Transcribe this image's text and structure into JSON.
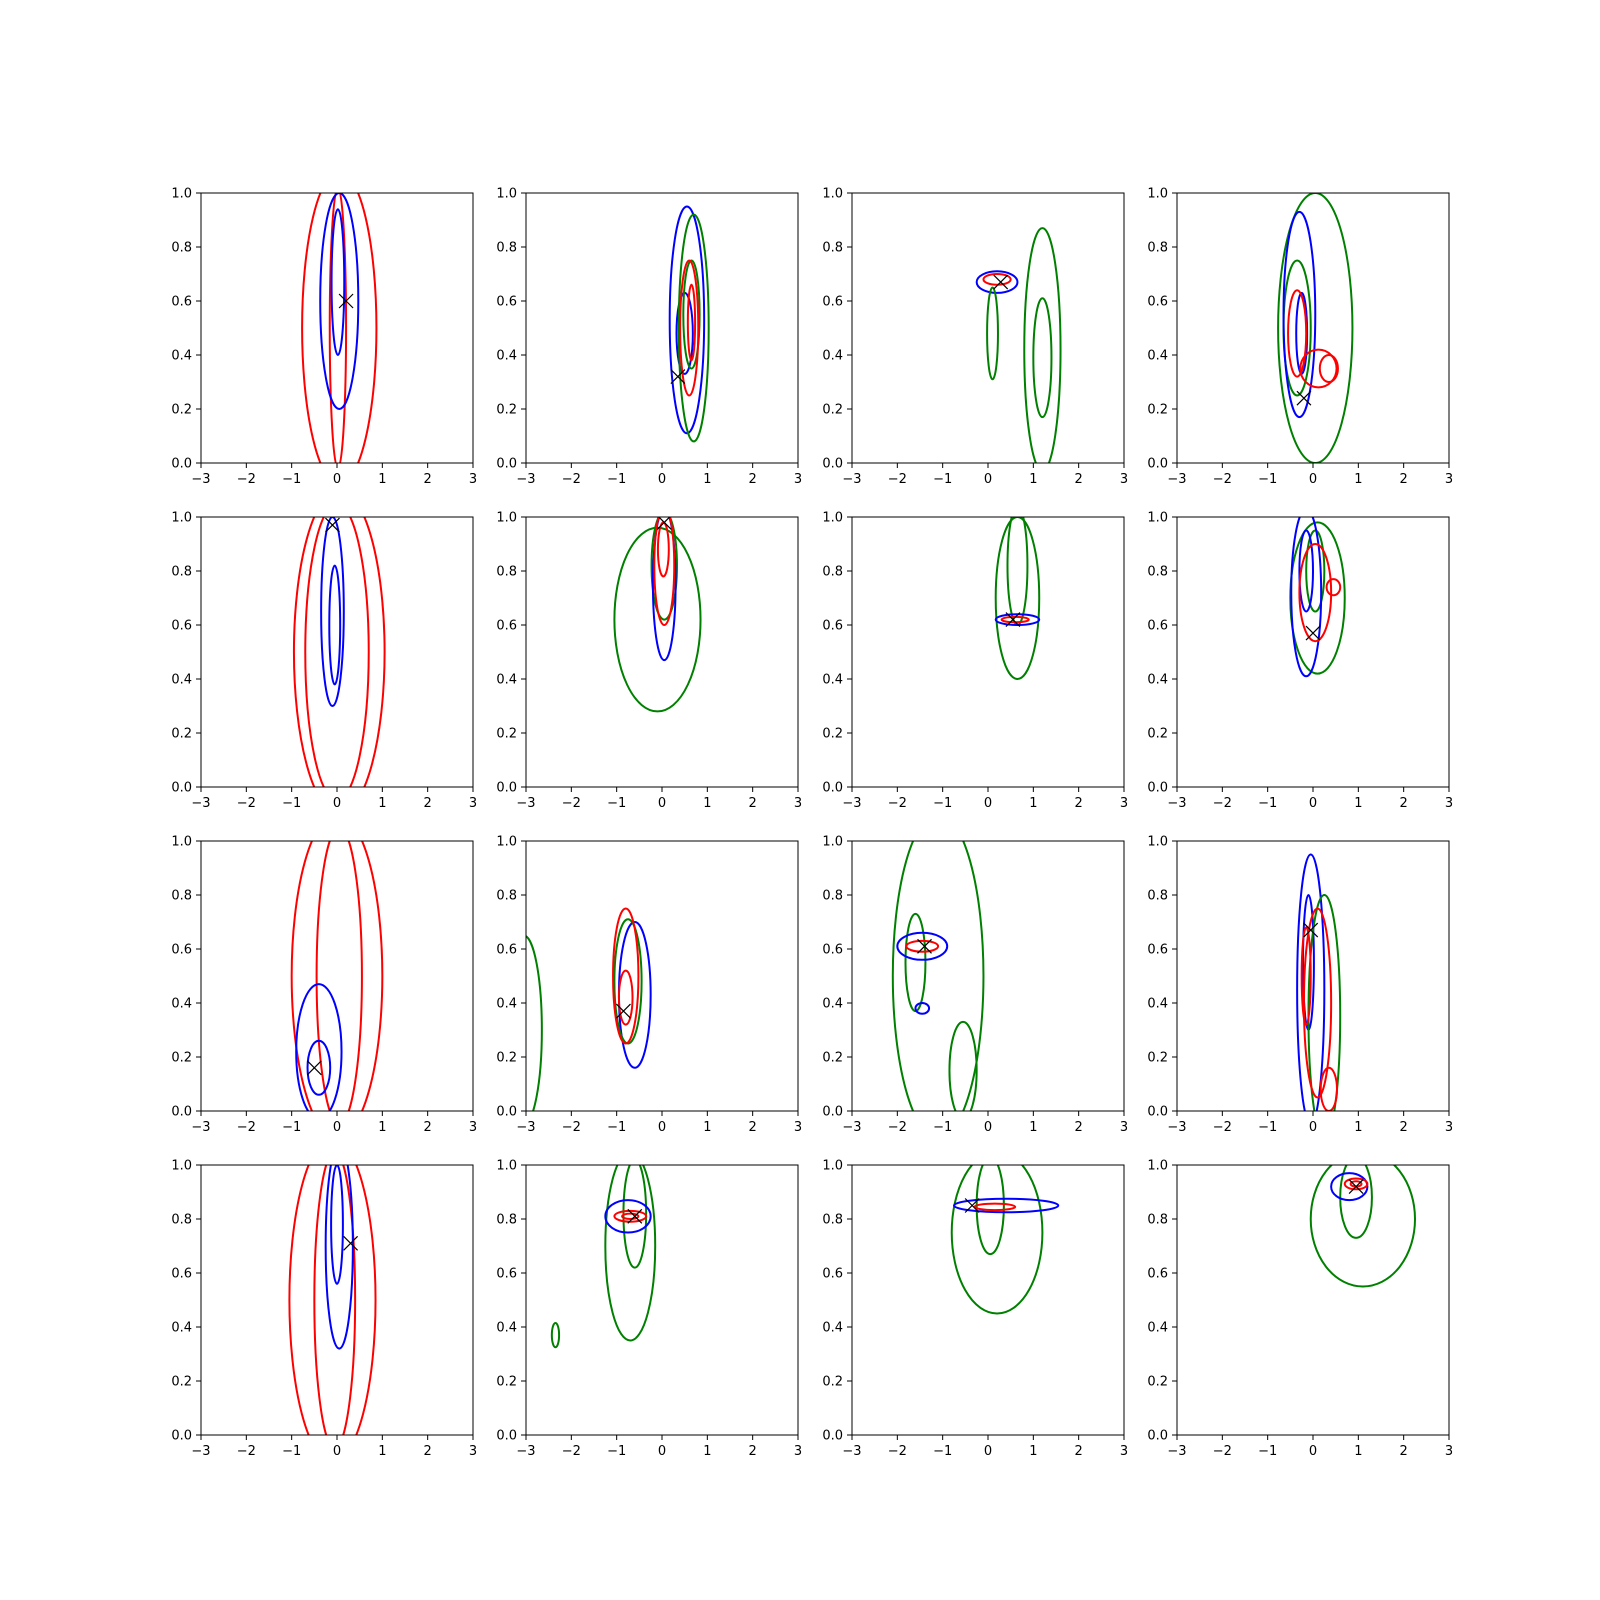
{
  "chart_data": {
    "type": "contour",
    "layout": {
      "rows": 4,
      "cols": 4
    },
    "xlim": [
      -3,
      3
    ],
    "ylim": [
      0,
      1
    ],
    "xticks": [
      -3,
      -2,
      -1,
      0,
      1,
      2,
      3
    ],
    "yticks": [
      "0.0",
      "0.2",
      "0.4",
      "0.6",
      "0.8",
      "1.0"
    ],
    "xtick_labels": [
      "−3",
      "−2",
      "−1",
      "0",
      "1",
      "2",
      "3"
    ],
    "series_colors": {
      "blue": "#0000ff",
      "red": "#ff0000",
      "green": "#008000",
      "marker": "#000000"
    },
    "panels": [
      {
        "marker": [
          0.2,
          0.6
        ],
        "contours": [
          {
            "color": "red",
            "cx": 0.05,
            "cy": 0.5,
            "rx": 0.82,
            "ry": 0.58
          },
          {
            "color": "red",
            "cx": 0.02,
            "cy": 0.5,
            "rx": 0.18,
            "ry": 0.52
          },
          {
            "color": "blue",
            "cx": 0.05,
            "cy": 0.6,
            "rx": 0.42,
            "ry": 0.4
          },
          {
            "color": "blue",
            "cx": 0.02,
            "cy": 0.67,
            "rx": 0.14,
            "ry": 0.27
          }
        ]
      },
      {
        "marker": [
          0.35,
          0.32
        ],
        "contours": [
          {
            "color": "blue",
            "cx": 0.55,
            "cy": 0.53,
            "rx": 0.38,
            "ry": 0.42
          },
          {
            "color": "blue",
            "cx": 0.5,
            "cy": 0.48,
            "rx": 0.18,
            "ry": 0.15
          },
          {
            "color": "green",
            "cx": 0.7,
            "cy": 0.5,
            "rx": 0.33,
            "ry": 0.42
          },
          {
            "color": "green",
            "cx": 0.65,
            "cy": 0.55,
            "rx": 0.18,
            "ry": 0.2
          },
          {
            "color": "red",
            "cx": 0.6,
            "cy": 0.5,
            "rx": 0.2,
            "ry": 0.25
          },
          {
            "color": "red",
            "cx": 0.65,
            "cy": 0.52,
            "rx": 0.08,
            "ry": 0.14
          }
        ]
      },
      {
        "marker": [
          0.28,
          0.67
        ],
        "contours": [
          {
            "color": "blue",
            "cx": 0.2,
            "cy": 0.67,
            "rx": 0.45,
            "ry": 0.04
          },
          {
            "color": "red",
            "cx": 0.2,
            "cy": 0.68,
            "rx": 0.3,
            "ry": 0.02
          },
          {
            "color": "green",
            "cx": 0.1,
            "cy": 0.48,
            "rx": 0.12,
            "ry": 0.17
          },
          {
            "color": "green",
            "cx": 1.2,
            "cy": 0.42,
            "rx": 0.4,
            "ry": 0.45
          },
          {
            "color": "green",
            "cx": 1.2,
            "cy": 0.39,
            "rx": 0.2,
            "ry": 0.22
          }
        ]
      },
      {
        "marker": [
          -0.2,
          0.24
        ],
        "contours": [
          {
            "color": "green",
            "cx": 0.05,
            "cy": 0.5,
            "rx": 0.82,
            "ry": 0.5
          },
          {
            "color": "green",
            "cx": -0.35,
            "cy": 0.5,
            "rx": 0.3,
            "ry": 0.25
          },
          {
            "color": "blue",
            "cx": -0.3,
            "cy": 0.55,
            "rx": 0.35,
            "ry": 0.38
          },
          {
            "color": "blue",
            "cx": -0.25,
            "cy": 0.48,
            "rx": 0.12,
            "ry": 0.15
          },
          {
            "color": "red",
            "cx": -0.35,
            "cy": 0.48,
            "rx": 0.2,
            "ry": 0.16
          },
          {
            "color": "red",
            "cx": 0.12,
            "cy": 0.35,
            "rx": 0.4,
            "ry": 0.07
          },
          {
            "color": "red",
            "cx": 0.35,
            "cy": 0.35,
            "rx": 0.2,
            "ry": 0.05
          }
        ]
      },
      {
        "marker": [
          -0.1,
          0.97
        ],
        "contours": [
          {
            "color": "red",
            "cx": 0.05,
            "cy": 0.5,
            "rx": 1.0,
            "ry": 0.6
          },
          {
            "color": "red",
            "cx": 0.0,
            "cy": 0.5,
            "rx": 0.7,
            "ry": 0.55
          },
          {
            "color": "blue",
            "cx": -0.1,
            "cy": 0.65,
            "rx": 0.25,
            "ry": 0.35
          },
          {
            "color": "blue",
            "cx": -0.05,
            "cy": 0.6,
            "rx": 0.12,
            "ry": 0.22
          }
        ]
      },
      {
        "marker": [
          0.05,
          0.98
        ],
        "contours": [
          {
            "color": "green",
            "cx": -0.1,
            "cy": 0.62,
            "rx": 0.95,
            "ry": 0.34
          },
          {
            "color": "green",
            "cx": 0.05,
            "cy": 0.82,
            "rx": 0.28,
            "ry": 0.2
          },
          {
            "color": "blue",
            "cx": 0.05,
            "cy": 0.75,
            "rx": 0.25,
            "ry": 0.28
          },
          {
            "color": "red",
            "cx": 0.05,
            "cy": 0.82,
            "rx": 0.22,
            "ry": 0.22
          },
          {
            "color": "red",
            "cx": 0.03,
            "cy": 0.88,
            "rx": 0.12,
            "ry": 0.1
          }
        ]
      },
      {
        "marker": [
          0.55,
          0.62
        ],
        "contours": [
          {
            "color": "green",
            "cx": 0.65,
            "cy": 0.7,
            "rx": 0.48,
            "ry": 0.3
          },
          {
            "color": "green",
            "cx": 0.65,
            "cy": 0.82,
            "rx": 0.22,
            "ry": 0.22
          },
          {
            "color": "blue",
            "cx": 0.65,
            "cy": 0.62,
            "rx": 0.48,
            "ry": 0.02
          },
          {
            "color": "red",
            "cx": 0.6,
            "cy": 0.62,
            "rx": 0.3,
            "ry": 0.01
          }
        ]
      },
      {
        "marker": [
          0.0,
          0.57
        ],
        "contours": [
          {
            "color": "green",
            "cx": 0.1,
            "cy": 0.7,
            "rx": 0.6,
            "ry": 0.28
          },
          {
            "color": "green",
            "cx": 0.05,
            "cy": 0.8,
            "rx": 0.2,
            "ry": 0.15
          },
          {
            "color": "blue",
            "cx": -0.15,
            "cy": 0.72,
            "rx": 0.33,
            "ry": 0.31
          },
          {
            "color": "blue",
            "cx": -0.15,
            "cy": 0.8,
            "rx": 0.15,
            "ry": 0.15
          },
          {
            "color": "red",
            "cx": 0.05,
            "cy": 0.72,
            "rx": 0.35,
            "ry": 0.18
          },
          {
            "color": "red",
            "cx": 0.45,
            "cy": 0.74,
            "rx": 0.15,
            "ry": 0.03
          }
        ]
      },
      {
        "marker": [
          -0.5,
          0.16
        ],
        "contours": [
          {
            "color": "red",
            "cx": 0.0,
            "cy": 0.5,
            "rx": 1.0,
            "ry": 0.6
          },
          {
            "color": "red",
            "cx": 0.05,
            "cy": 0.5,
            "rx": 0.5,
            "ry": 0.55
          },
          {
            "color": "blue",
            "cx": -0.4,
            "cy": 0.22,
            "rx": 0.5,
            "ry": 0.25
          },
          {
            "color": "blue",
            "cx": -0.4,
            "cy": 0.16,
            "rx": 0.25,
            "ry": 0.1
          }
        ]
      },
      {
        "marker": [
          -0.85,
          0.37
        ],
        "contours": [
          {
            "color": "green",
            "cx": -3.05,
            "cy": 0.3,
            "rx": 0.4,
            "ry": 0.35
          },
          {
            "color": "blue",
            "cx": -0.6,
            "cy": 0.43,
            "rx": 0.35,
            "ry": 0.27
          },
          {
            "color": "green",
            "cx": -0.75,
            "cy": 0.48,
            "rx": 0.3,
            "ry": 0.23
          },
          {
            "color": "red",
            "cx": -0.8,
            "cy": 0.5,
            "rx": 0.28,
            "ry": 0.25
          },
          {
            "color": "red",
            "cx": -0.8,
            "cy": 0.42,
            "rx": 0.15,
            "ry": 0.1
          }
        ]
      },
      {
        "marker": [
          -1.4,
          0.61
        ],
        "contours": [
          {
            "color": "green",
            "cx": -1.1,
            "cy": 0.5,
            "rx": 1.0,
            "ry": 0.6
          },
          {
            "color": "green",
            "cx": -1.6,
            "cy": 0.55,
            "rx": 0.22,
            "ry": 0.18
          },
          {
            "color": "green",
            "cx": -0.55,
            "cy": 0.15,
            "rx": 0.3,
            "ry": 0.18
          },
          {
            "color": "blue",
            "cx": -1.45,
            "cy": 0.61,
            "rx": 0.55,
            "ry": 0.05
          },
          {
            "color": "blue",
            "cx": -1.45,
            "cy": 0.38,
            "rx": 0.15,
            "ry": 0.02
          },
          {
            "color": "red",
            "cx": -1.45,
            "cy": 0.61,
            "rx": 0.35,
            "ry": 0.02
          }
        ]
      },
      {
        "marker": [
          -0.05,
          0.67
        ],
        "contours": [
          {
            "color": "blue",
            "cx": -0.05,
            "cy": 0.45,
            "rx": 0.3,
            "ry": 0.5
          },
          {
            "color": "blue",
            "cx": -0.1,
            "cy": 0.55,
            "rx": 0.12,
            "ry": 0.25
          },
          {
            "color": "green",
            "cx": 0.25,
            "cy": 0.35,
            "rx": 0.35,
            "ry": 0.45
          },
          {
            "color": "red",
            "cx": 0.1,
            "cy": 0.4,
            "rx": 0.3,
            "ry": 0.35
          },
          {
            "color": "red",
            "cx": -0.15,
            "cy": 0.5,
            "rx": 0.1,
            "ry": 0.18
          },
          {
            "color": "red",
            "cx": 0.35,
            "cy": 0.08,
            "rx": 0.18,
            "ry": 0.08
          }
        ]
      },
      {
        "marker": [
          0.3,
          0.71
        ],
        "contours": [
          {
            "color": "red",
            "cx": -0.1,
            "cy": 0.5,
            "rx": 0.95,
            "ry": 0.6
          },
          {
            "color": "red",
            "cx": -0.05,
            "cy": 0.5,
            "rx": 0.45,
            "ry": 0.55
          },
          {
            "color": "blue",
            "cx": 0.05,
            "cy": 0.7,
            "rx": 0.3,
            "ry": 0.38
          },
          {
            "color": "blue",
            "cx": 0.0,
            "cy": 0.78,
            "rx": 0.13,
            "ry": 0.22
          }
        ]
      },
      {
        "marker": [
          -0.6,
          0.81
        ],
        "contours": [
          {
            "color": "green",
            "cx": -0.7,
            "cy": 0.7,
            "rx": 0.55,
            "ry": 0.35
          },
          {
            "color": "green",
            "cx": -0.6,
            "cy": 0.82,
            "rx": 0.25,
            "ry": 0.2
          },
          {
            "color": "green",
            "cx": -2.35,
            "cy": 0.37,
            "rx": 0.08,
            "ry": 0.045
          },
          {
            "color": "blue",
            "cx": -0.75,
            "cy": 0.81,
            "rx": 0.5,
            "ry": 0.06
          },
          {
            "color": "red",
            "cx": -0.7,
            "cy": 0.81,
            "rx": 0.35,
            "ry": 0.02
          },
          {
            "color": "red",
            "cx": -0.7,
            "cy": 0.81,
            "rx": 0.18,
            "ry": 0.01
          }
        ]
      },
      {
        "marker": [
          -0.35,
          0.85
        ],
        "contours": [
          {
            "color": "green",
            "cx": 0.2,
            "cy": 0.75,
            "rx": 1.0,
            "ry": 0.3
          },
          {
            "color": "green",
            "cx": 0.05,
            "cy": 0.85,
            "rx": 0.3,
            "ry": 0.18
          },
          {
            "color": "blue",
            "cx": 0.4,
            "cy": 0.85,
            "rx": 1.15,
            "ry": 0.025
          },
          {
            "color": "red",
            "cx": 0.15,
            "cy": 0.845,
            "rx": 0.45,
            "ry": 0.012
          }
        ]
      },
      {
        "marker": [
          0.95,
          0.92
        ],
        "contours": [
          {
            "color": "green",
            "cx": 1.1,
            "cy": 0.8,
            "rx": 1.15,
            "ry": 0.25
          },
          {
            "color": "green",
            "cx": 0.95,
            "cy": 0.88,
            "rx": 0.35,
            "ry": 0.15
          },
          {
            "color": "blue",
            "cx": 0.8,
            "cy": 0.92,
            "rx": 0.4,
            "ry": 0.05
          },
          {
            "color": "red",
            "cx": 0.95,
            "cy": 0.93,
            "rx": 0.25,
            "ry": 0.02
          },
          {
            "color": "red",
            "cx": 0.95,
            "cy": 0.93,
            "rx": 0.12,
            "ry": 0.01
          }
        ]
      }
    ]
  }
}
